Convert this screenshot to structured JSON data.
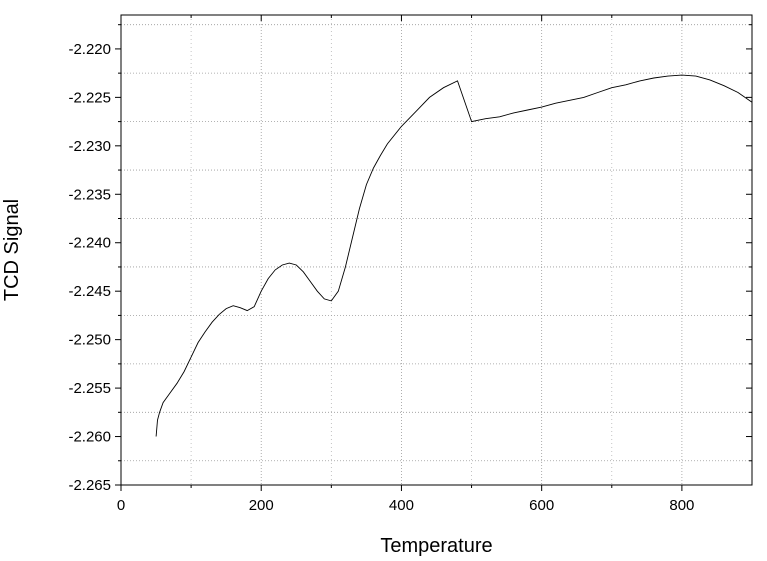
{
  "chart_data": {
    "type": "line",
    "title": "",
    "xlabel": "Temperature",
    "ylabel": "TCD Signal",
    "xlim": [
      0,
      900
    ],
    "ylim": [
      -2.265,
      -2.2165
    ],
    "x_ticks": [
      0,
      200,
      400,
      600,
      800
    ],
    "x_tick_labels": [
      "0",
      "200",
      "400",
      "600",
      "800"
    ],
    "y_ticks": [
      -2.265,
      -2.26,
      -2.255,
      -2.25,
      -2.245,
      -2.24,
      -2.235,
      -2.23,
      -2.225,
      -2.22
    ],
    "y_tick_labels": [
      "-2.265",
      "-2.260",
      "-2.255",
      "-2.250",
      "-2.245",
      "-2.240",
      "-2.235",
      "-2.230",
      "-2.225",
      "-2.220"
    ],
    "grid": true,
    "legend": "none",
    "series": [
      {
        "color": "#000000",
        "x": [
          50,
          52,
          55,
          60,
          70,
          80,
          90,
          100,
          110,
          120,
          130,
          140,
          150,
          160,
          170,
          180,
          190,
          200,
          210,
          220,
          230,
          240,
          250,
          260,
          270,
          280,
          290,
          300,
          310,
          320,
          330,
          340,
          350,
          360,
          370,
          380,
          400,
          420,
          440,
          460,
          480,
          500,
          520,
          540,
          560,
          580,
          600,
          620,
          640,
          660,
          680,
          700,
          720,
          740,
          760,
          780,
          800,
          820,
          840,
          860,
          880,
          900
        ],
        "y": [
          -2.26,
          -2.2583,
          -2.2575,
          -2.2565,
          -2.2555,
          -2.2545,
          -2.2533,
          -2.2518,
          -2.2503,
          -2.2492,
          -2.2482,
          -2.2474,
          -2.2468,
          -2.2465,
          -2.2467,
          -2.247,
          -2.2466,
          -2.245,
          -2.2437,
          -2.2428,
          -2.2423,
          -2.2421,
          -2.2423,
          -2.243,
          -2.244,
          -2.245,
          -2.2458,
          -2.246,
          -2.245,
          -2.2425,
          -2.2395,
          -2.2365,
          -2.234,
          -2.2323,
          -2.231,
          -2.2298,
          -2.228,
          -2.2265,
          -2.225,
          -2.224,
          -2.2233,
          -2.2275,
          -2.2272,
          -2.227,
          -2.2266,
          -2.2263,
          -2.226,
          -2.2256,
          -2.2253,
          -2.225,
          -2.2245,
          -2.224,
          -2.2237,
          -2.2233,
          -2.223,
          -2.2228,
          -2.2227,
          -2.2228,
          -2.2232,
          -2.2238,
          -2.2245,
          -2.2255
        ]
      }
    ]
  }
}
